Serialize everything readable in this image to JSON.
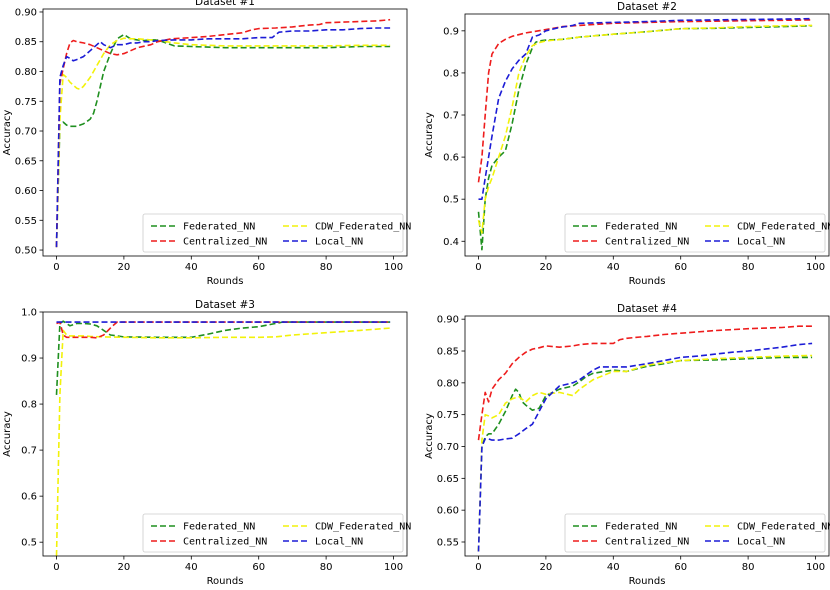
{
  "figure": {
    "colors": {
      "Federated_NN": "#1f8f1f",
      "CDW_Federated_NN": "#f2f20a",
      "Centralized_NN": "#ee1c1c",
      "Local_NN": "#1c1cd6"
    }
  },
  "chart_data": [
    {
      "type": "line",
      "title": "Dataset #1",
      "xlabel": "Rounds",
      "ylabel": "Accuracy",
      "xlim": [
        -4,
        104
      ],
      "ylim": [
        0.49,
        0.905
      ],
      "xticks": [
        0,
        20,
        40,
        60,
        80,
        100
      ],
      "yticks": [
        0.5,
        0.55,
        0.6,
        0.65,
        0.7,
        0.75,
        0.8,
        0.85,
        0.9
      ],
      "ytick_labels": [
        "0.50",
        "0.55",
        "0.60",
        "0.65",
        "0.70",
        "0.75",
        "0.80",
        "0.85",
        "0.90"
      ],
      "legend": [
        "Federated_NN",
        "CDW_Federated_NN",
        "Centralized_NN",
        "Local_NN"
      ],
      "series": [
        {
          "name": "Federated_NN",
          "x": [
            0,
            1,
            2,
            3,
            4,
            6,
            8,
            10,
            11,
            12,
            13,
            14,
            16,
            18,
            20,
            22,
            24,
            26,
            28,
            30,
            35,
            40,
            50,
            60,
            70,
            80,
            90,
            99
          ],
          "y": [
            0.505,
            0.71,
            0.715,
            0.71,
            0.708,
            0.708,
            0.712,
            0.72,
            0.73,
            0.75,
            0.775,
            0.8,
            0.83,
            0.855,
            0.862,
            0.855,
            0.853,
            0.852,
            0.853,
            0.853,
            0.843,
            0.842,
            0.84,
            0.84,
            0.84,
            0.84,
            0.842,
            0.842
          ]
        },
        {
          "name": "CDW_Federated_NN",
          "x": [
            0,
            1,
            2,
            3,
            4,
            6,
            7,
            8,
            10,
            12,
            14,
            16,
            18,
            20,
            22,
            24,
            28,
            30,
            35,
            40,
            50,
            60,
            70,
            80,
            90,
            99
          ],
          "y": [
            0.505,
            0.72,
            0.795,
            0.79,
            0.782,
            0.772,
            0.77,
            0.775,
            0.79,
            0.81,
            0.83,
            0.845,
            0.852,
            0.856,
            0.855,
            0.855,
            0.853,
            0.852,
            0.848,
            0.845,
            0.843,
            0.843,
            0.843,
            0.843,
            0.844,
            0.844
          ]
        },
        {
          "name": "Centralized_NN",
          "x": [
            0,
            1,
            2,
            3,
            4,
            5,
            6,
            8,
            10,
            12,
            14,
            16,
            18,
            20,
            22,
            24,
            28,
            30,
            34,
            40,
            45,
            50,
            55,
            58,
            60,
            65,
            70,
            75,
            78,
            80,
            85,
            90,
            95,
            99
          ],
          "y": [
            0.505,
            0.78,
            0.805,
            0.83,
            0.848,
            0.852,
            0.85,
            0.848,
            0.845,
            0.84,
            0.835,
            0.83,
            0.828,
            0.83,
            0.835,
            0.84,
            0.845,
            0.85,
            0.855,
            0.857,
            0.859,
            0.862,
            0.865,
            0.87,
            0.872,
            0.873,
            0.875,
            0.878,
            0.879,
            0.882,
            0.883,
            0.884,
            0.885,
            0.887
          ]
        },
        {
          "name": "Local_NN",
          "x": [
            0,
            1,
            2,
            3,
            4,
            5,
            6,
            8,
            10,
            12,
            13,
            14,
            16,
            18,
            20,
            22,
            24,
            26,
            28,
            30,
            35,
            40,
            45,
            50,
            55,
            60,
            64,
            66,
            70,
            75,
            80,
            85,
            90,
            95,
            99
          ],
          "y": [
            0.505,
            0.79,
            0.81,
            0.825,
            0.822,
            0.818,
            0.82,
            0.825,
            0.835,
            0.845,
            0.85,
            0.845,
            0.84,
            0.845,
            0.845,
            0.848,
            0.848,
            0.85,
            0.85,
            0.852,
            0.853,
            0.853,
            0.855,
            0.855,
            0.855,
            0.857,
            0.857,
            0.866,
            0.868,
            0.868,
            0.87,
            0.87,
            0.872,
            0.873,
            0.873
          ]
        }
      ]
    },
    {
      "type": "line",
      "title": "Dataset #2",
      "xlabel": "Rounds",
      "ylabel": "Accuracy",
      "xlim": [
        -4,
        104
      ],
      "ylim": [
        0.365,
        0.94
      ],
      "xticks": [
        0,
        20,
        40,
        60,
        80,
        100
      ],
      "yticks": [
        0.4,
        0.5,
        0.6,
        0.7,
        0.8,
        0.9
      ],
      "ytick_labels": [
        "0.4",
        "0.5",
        "0.6",
        "0.7",
        "0.8",
        "0.9"
      ],
      "legend": [
        "Federated_NN",
        "CDW_Federated_NN",
        "Centralized_NN",
        "Local_NN"
      ],
      "series": [
        {
          "name": "Federated_NN",
          "x": [
            0,
            1,
            2,
            3,
            4,
            6,
            8,
            10,
            12,
            14,
            16,
            17,
            18,
            20,
            25,
            30,
            40,
            50,
            60,
            70,
            80,
            90,
            99
          ],
          "y": [
            0.47,
            0.38,
            0.5,
            0.55,
            0.58,
            0.6,
            0.615,
            0.68,
            0.76,
            0.82,
            0.86,
            0.873,
            0.876,
            0.878,
            0.88,
            0.885,
            0.892,
            0.898,
            0.905,
            0.906,
            0.908,
            0.91,
            0.912
          ]
        },
        {
          "name": "CDW_Federated_NN",
          "x": [
            0,
            1,
            2,
            3,
            4,
            6,
            8,
            10,
            12,
            14,
            16,
            18,
            20,
            25,
            30,
            40,
            50,
            60,
            70,
            80,
            90,
            99
          ],
          "y": [
            0.45,
            0.42,
            0.5,
            0.53,
            0.55,
            0.6,
            0.65,
            0.72,
            0.8,
            0.84,
            0.865,
            0.872,
            0.876,
            0.88,
            0.885,
            0.892,
            0.898,
            0.905,
            0.907,
            0.91,
            0.912,
            0.913
          ]
        },
        {
          "name": "Centralized_NN",
          "x": [
            0,
            1,
            2,
            3,
            4,
            6,
            8,
            10,
            14,
            20,
            25,
            30,
            40,
            50,
            60,
            70,
            80,
            90,
            99
          ],
          "y": [
            0.54,
            0.6,
            0.7,
            0.8,
            0.845,
            0.87,
            0.88,
            0.887,
            0.895,
            0.903,
            0.91,
            0.913,
            0.918,
            0.92,
            0.922,
            0.923,
            0.924,
            0.925,
            0.926
          ]
        },
        {
          "name": "Local_NN",
          "x": [
            0,
            1,
            2,
            4,
            6,
            8,
            10,
            12,
            14,
            16,
            18,
            20,
            24,
            28,
            30,
            40,
            50,
            60,
            70,
            80,
            90,
            99
          ],
          "y": [
            0.5,
            0.5,
            0.55,
            0.65,
            0.74,
            0.78,
            0.81,
            0.83,
            0.845,
            0.885,
            0.89,
            0.9,
            0.908,
            0.913,
            0.918,
            0.92,
            0.922,
            0.925,
            0.926,
            0.927,
            0.928,
            0.929
          ]
        }
      ]
    },
    {
      "type": "line",
      "title": "Dataset #3",
      "xlabel": "Rounds",
      "ylabel": "Accuracy",
      "xlim": [
        -4,
        104
      ],
      "ylim": [
        0.47,
        1.0
      ],
      "xticks": [
        0,
        20,
        40,
        60,
        80,
        100
      ],
      "yticks": [
        0.5,
        0.6,
        0.7,
        0.8,
        0.9,
        1.0
      ],
      "ytick_labels": [
        "0.5",
        "0.6",
        "0.7",
        "0.8",
        "0.9",
        "1.0"
      ],
      "legend": [
        "Federated_NN",
        "CDW_Federated_NN",
        "Centralized_NN",
        "Local_NN"
      ],
      "series": [
        {
          "name": "Federated_NN",
          "x": [
            0,
            1,
            2,
            3,
            4,
            6,
            8,
            10,
            12,
            14,
            16,
            18,
            20,
            30,
            40,
            45,
            50,
            55,
            60,
            65,
            67,
            70,
            80,
            90,
            99
          ],
          "y": [
            0.82,
            0.975,
            0.98,
            0.975,
            0.97,
            0.975,
            0.975,
            0.974,
            0.97,
            0.96,
            0.95,
            0.948,
            0.946,
            0.945,
            0.945,
            0.952,
            0.96,
            0.965,
            0.968,
            0.975,
            0.978,
            0.978,
            0.978,
            0.978,
            0.978
          ]
        },
        {
          "name": "CDW_Federated_NN",
          "x": [
            0,
            1,
            2,
            3,
            4,
            6,
            8,
            10,
            14,
            20,
            30,
            40,
            50,
            60,
            65,
            70,
            80,
            90,
            99
          ],
          "y": [
            0.47,
            0.82,
            0.96,
            0.95,
            0.948,
            0.948,
            0.948,
            0.947,
            0.946,
            0.945,
            0.944,
            0.944,
            0.945,
            0.945,
            0.946,
            0.95,
            0.955,
            0.96,
            0.965
          ]
        },
        {
          "name": "Centralized_NN",
          "x": [
            0,
            1,
            2,
            3,
            6,
            10,
            12,
            14,
            16,
            17,
            18,
            20,
            30,
            40,
            50,
            60,
            70,
            80,
            90,
            99
          ],
          "y": [
            0.975,
            0.978,
            0.95,
            0.945,
            0.945,
            0.945,
            0.944,
            0.95,
            0.965,
            0.972,
            0.978,
            0.978,
            0.978,
            0.978,
            0.978,
            0.978,
            0.978,
            0.978,
            0.978,
            0.978
          ]
        },
        {
          "name": "Local_NN",
          "x": [
            0,
            10,
            20,
            30,
            40,
            50,
            60,
            70,
            80,
            90,
            99
          ],
          "y": [
            0.978,
            0.978,
            0.978,
            0.978,
            0.978,
            0.978,
            0.978,
            0.978,
            0.978,
            0.978,
            0.978
          ]
        }
      ]
    },
    {
      "type": "line",
      "title": "Dataset #4",
      "xlabel": "Rounds",
      "ylabel": "Accuracy",
      "xlim": [
        -4,
        104
      ],
      "ylim": [
        0.528,
        0.905
      ],
      "xticks": [
        0,
        20,
        40,
        60,
        80,
        100
      ],
      "yticks": [
        0.55,
        0.6,
        0.65,
        0.7,
        0.75,
        0.8,
        0.85,
        0.9
      ],
      "ytick_labels": [
        "0.55",
        "0.60",
        "0.65",
        "0.70",
        "0.75",
        "0.80",
        "0.85",
        "0.90"
      ],
      "legend": [
        "Federated_NN",
        "CDW_Federated_NN",
        "Centralized_NN",
        "Local_NN"
      ],
      "series": [
        {
          "name": "Federated_NN",
          "x": [
            0,
            1,
            2,
            3,
            4,
            6,
            8,
            10,
            11,
            12,
            13,
            14,
            16,
            18,
            20,
            24,
            28,
            30,
            32,
            34,
            40,
            44,
            50,
            55,
            60,
            70,
            80,
            90,
            99
          ],
          "y": [
            0.535,
            0.7,
            0.715,
            0.72,
            0.72,
            0.735,
            0.755,
            0.78,
            0.79,
            0.785,
            0.77,
            0.765,
            0.757,
            0.76,
            0.78,
            0.79,
            0.795,
            0.802,
            0.81,
            0.815,
            0.82,
            0.818,
            0.826,
            0.83,
            0.835,
            0.836,
            0.838,
            0.84,
            0.84
          ]
        },
        {
          "name": "CDW_Federated_NN",
          "x": [
            0,
            1,
            2,
            3,
            4,
            6,
            8,
            10,
            12,
            14,
            16,
            18,
            20,
            24,
            28,
            30,
            34,
            40,
            44,
            50,
            60,
            70,
            80,
            90,
            99
          ],
          "y": [
            0.535,
            0.71,
            0.75,
            0.748,
            0.745,
            0.75,
            0.768,
            0.775,
            0.778,
            0.77,
            0.78,
            0.785,
            0.782,
            0.785,
            0.78,
            0.79,
            0.805,
            0.818,
            0.818,
            0.828,
            0.835,
            0.838,
            0.84,
            0.842,
            0.843
          ]
        },
        {
          "name": "Centralized_NN",
          "x": [
            0,
            1,
            2,
            3,
            4,
            6,
            8,
            10,
            12,
            14,
            16,
            18,
            20,
            24,
            28,
            30,
            34,
            40,
            42,
            44,
            48,
            50,
            55,
            60,
            65,
            70,
            80,
            90,
            95,
            99
          ],
          "y": [
            0.71,
            0.75,
            0.785,
            0.77,
            0.79,
            0.805,
            0.815,
            0.83,
            0.84,
            0.848,
            0.853,
            0.855,
            0.858,
            0.856,
            0.858,
            0.86,
            0.862,
            0.862,
            0.868,
            0.87,
            0.872,
            0.873,
            0.876,
            0.878,
            0.88,
            0.882,
            0.885,
            0.887,
            0.889,
            0.889
          ]
        },
        {
          "name": "Local_NN",
          "x": [
            0,
            1,
            2,
            3,
            4,
            6,
            8,
            10,
            12,
            14,
            16,
            18,
            20,
            24,
            28,
            30,
            34,
            36,
            40,
            44,
            50,
            55,
            60,
            65,
            70,
            75,
            80,
            85,
            90,
            95,
            99
          ],
          "y": [
            0.535,
            0.7,
            0.712,
            0.712,
            0.71,
            0.71,
            0.712,
            0.713,
            0.72,
            0.728,
            0.735,
            0.755,
            0.775,
            0.795,
            0.8,
            0.805,
            0.82,
            0.825,
            0.825,
            0.825,
            0.83,
            0.835,
            0.84,
            0.842,
            0.845,
            0.848,
            0.85,
            0.853,
            0.856,
            0.86,
            0.862
          ]
        }
      ]
    }
  ]
}
